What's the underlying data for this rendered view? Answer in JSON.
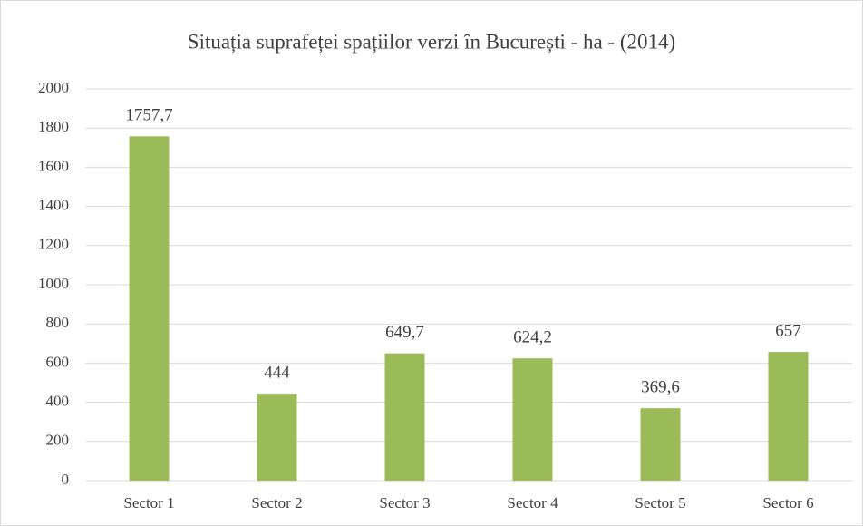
{
  "chart_data": {
    "type": "bar",
    "title": "Situația suprafeței spațiilor verzi în București - ha - (2014)",
    "categories": [
      "Sector 1",
      "Sector 2",
      "Sector 3",
      "Sector 4",
      "Sector 5",
      "Sector 6"
    ],
    "values": [
      1757.7,
      444,
      649.7,
      624.2,
      369.6,
      657
    ],
    "value_labels": [
      "1757,7",
      "444",
      "649,7",
      "624,2",
      "369,6",
      "657"
    ],
    "color": "#9bbb59",
    "ylim": [
      0,
      2000
    ],
    "yticks": [
      0,
      200,
      400,
      600,
      800,
      1000,
      1200,
      1400,
      1600,
      1800,
      2000
    ],
    "grid": true
  }
}
